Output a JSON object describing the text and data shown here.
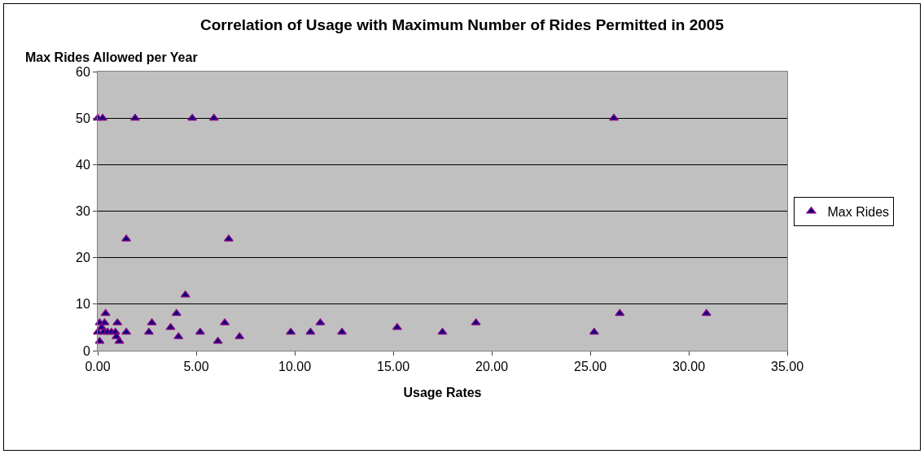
{
  "chart_data": {
    "type": "scatter",
    "title": "Correlation of Usage with Maximum Number of Rides Permitted in 2005",
    "xlabel": "Usage Rates",
    "ylabel": "Max Rides Allowed per Year",
    "xlim": [
      0,
      35
    ],
    "xticks": [
      {
        "value": 0,
        "label": "0.00"
      },
      {
        "value": 5,
        "label": "5.00"
      },
      {
        "value": 10,
        "label": "10.00"
      },
      {
        "value": 15,
        "label": "15.00"
      },
      {
        "value": 20,
        "label": "20.00"
      },
      {
        "value": 25,
        "label": "25.00"
      },
      {
        "value": 30,
        "label": "30.00"
      },
      {
        "value": 35,
        "label": "35.00"
      }
    ],
    "ylim": [
      0,
      60
    ],
    "yticks": [
      0,
      10,
      20,
      30,
      40,
      50,
      60
    ],
    "grid": "y",
    "legend": "right",
    "marker": "triangle",
    "series": [
      {
        "name": "Max Rides",
        "color": "#000080",
        "x": [
          0.0,
          0.25,
          1.9,
          4.8,
          5.9,
          26.2,
          1.45,
          6.65,
          4.45,
          0.4,
          4.0,
          26.5,
          30.9,
          0.1,
          0.35,
          1.0,
          2.75,
          6.45,
          11.3,
          19.2,
          0.2,
          3.7,
          15.2,
          0.0,
          0.3,
          0.5,
          0.7,
          0.9,
          1.45,
          2.6,
          5.2,
          9.8,
          10.8,
          12.4,
          17.5,
          25.2,
          0.95,
          4.1,
          7.2,
          0.1,
          1.1,
          6.1
        ],
        "values": [
          50,
          50,
          50,
          50,
          50,
          50,
          24,
          24,
          12,
          8,
          8,
          8,
          8,
          6,
          6,
          6,
          6,
          6,
          6,
          6,
          5,
          5,
          5,
          4,
          4,
          4,
          4,
          4,
          4,
          4,
          4,
          4,
          4,
          4,
          4,
          4,
          3,
          3,
          3,
          2,
          2,
          2
        ]
      }
    ]
  }
}
